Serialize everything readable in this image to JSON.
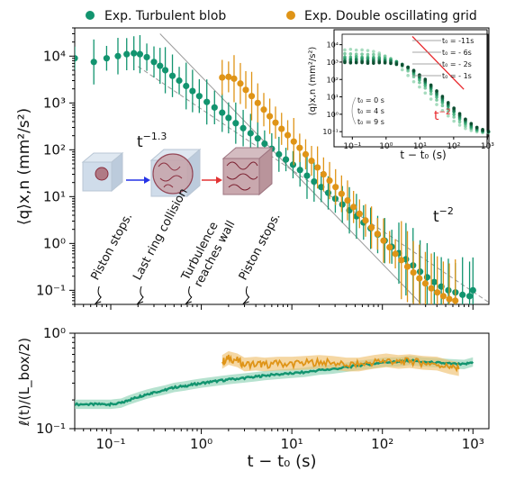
{
  "colors": {
    "turbulent": "#12946f",
    "oscillating": "#df9417",
    "turbulent_band": "#8fd3b6",
    "oscillating_band": "#f0c271",
    "red": "#e8262b",
    "arrow_blue": "#2533e6",
    "arrow_red": "#e23232",
    "ref_line": "#9a9a9a"
  },
  "legend": [
    {
      "label": "Exp. Turbulent blob",
      "color": "#12946f"
    },
    {
      "label": "Exp. Double oscillating grid",
      "color": "#df9417"
    }
  ],
  "annotations": {
    "slope_main": "t^{-1.3}",
    "slope_main_text": "t",
    "slope_main_exp": "−1.3",
    "slope_ref_text": "t",
    "slope_ref_exp": "−2",
    "events": [
      {
        "label": "Piston stops.",
        "color": "#12946f",
        "x": 0.065
      },
      {
        "label": "Last ring collision",
        "color": "#12946f",
        "x": 0.19
      },
      {
        "label": "Turbulence reaches wall",
        "line1": "Turbulence",
        "line2": "reaches wall",
        "color": "#12946f",
        "x": 0.65
      },
      {
        "label": "Piston stops.",
        "color": "#df9417",
        "x": 2.8
      }
    ],
    "inset_red_text": "t",
    "inset_red_exp": "−2",
    "inset_t0_labels": [
      "t₀ = -11s",
      "t₀ = - 6s",
      "t₀ = - 2s",
      "t₀ = - 1s"
    ],
    "inset_t0_labels_left": [
      "t₀ =  0 s",
      "t₀ =  4 s",
      "t₀ =  9 s"
    ]
  },
  "chart_data": [
    {
      "type": "scatter",
      "xlabel": "t − t₀ (s)",
      "ylabel": "⟨q⟩x,n (mm²/s²)",
      "xscale": "log",
      "yscale": "log",
      "xlim": [
        0.04,
        1500
      ],
      "ylim": [
        0.05,
        40000
      ],
      "xticks": [
        "10⁻¹",
        "10⁰",
        "10¹",
        "10²",
        "10³"
      ],
      "yticks": [
        "10⁻¹",
        "10⁰",
        "10¹",
        "10²",
        "10³",
        "10⁴"
      ],
      "series": [
        {
          "name": "Exp. Turbulent blob",
          "color": "#12946f",
          "x": [
            0.04,
            0.065,
            0.09,
            0.12,
            0.15,
            0.18,
            0.21,
            0.25,
            0.3,
            0.35,
            0.4,
            0.48,
            0.57,
            0.68,
            0.8,
            0.95,
            1.15,
            1.4,
            1.7,
            2.0,
            2.4,
            2.9,
            3.5,
            4.2,
            5.0,
            6.0,
            7.2,
            8.6,
            10.3,
            12.3,
            14.7,
            17.6,
            21.1,
            25.2,
            30.2,
            36.1,
            43.2,
            51.7,
            61.9,
            74.1,
            88.7,
            106,
            127,
            152,
            182,
            218,
            261,
            312,
            374,
            447,
            535,
            641,
            767,
            918,
            1000
          ],
          "y": [
            9000,
            7500,
            9000,
            10000,
            11000,
            11500,
            11000,
            9500,
            7500,
            6200,
            5000,
            3800,
            3000,
            2300,
            1800,
            1400,
            1050,
            800,
            620,
            480,
            370,
            290,
            225,
            175,
            135,
            105,
            80,
            62,
            48,
            37,
            28,
            21,
            16,
            12,
            9,
            6.8,
            5.1,
            3.8,
            2.8,
            2.1,
            1.55,
            1.15,
            0.85,
            0.62,
            0.46,
            0.34,
            0.25,
            0.19,
            0.15,
            0.12,
            0.1,
            0.09,
            0.08,
            0.075,
            0.1
          ]
        },
        {
          "name": "Exp. Double oscillating grid",
          "color": "#df9417",
          "x": [
            1.7,
            2.0,
            2.3,
            2.7,
            3.1,
            3.6,
            4.2,
            4.9,
            5.7,
            6.6,
            7.7,
            9.0,
            10.5,
            12.2,
            14.2,
            16.5,
            19.2,
            22.4,
            26.1,
            30.4,
            35.4,
            41.2,
            48.0,
            55.9,
            65.1,
            75.8,
            88.3,
            103,
            120,
            139,
            162,
            189,
            220,
            256,
            298,
            347,
            404,
            471,
            548,
            639
          ],
          "y": [
            3500,
            3600,
            3300,
            2600,
            1900,
            1400,
            1000,
            720,
            520,
            380,
            280,
            205,
            150,
            110,
            80,
            58,
            42,
            30,
            22,
            16,
            11.5,
            8.3,
            6.0,
            4.3,
            3.1,
            2.2,
            1.6,
            1.15,
            0.83,
            0.6,
            0.44,
            0.32,
            0.24,
            0.18,
            0.14,
            0.11,
            0.09,
            0.075,
            0.065,
            0.06
          ]
        }
      ]
    },
    {
      "type": "line",
      "xlabel": "t − t₀ (s)",
      "ylabel": "ℓ(t)/(L_box/2)",
      "xscale": "log",
      "yscale": "log",
      "xlim": [
        0.04,
        1500
      ],
      "ylim": [
        0.1,
        1.0
      ],
      "xticks": [
        "10⁻¹",
        "10⁰",
        "10¹",
        "10²",
        "10³"
      ],
      "yticks": [
        "10⁻¹",
        "10⁰"
      ],
      "series": [
        {
          "name": "Exp. Turbulent blob",
          "color": "#12946f",
          "x": [
            0.04,
            0.06,
            0.08,
            0.1,
            0.13,
            0.16,
            0.2,
            0.25,
            0.3,
            0.4,
            0.5,
            0.65,
            0.8,
            1.0,
            1.3,
            1.7,
            2.2,
            3,
            4,
            5,
            7,
            10,
            14,
            20,
            28,
            40,
            55,
            80,
            110,
            150,
            200,
            280,
            400,
            550,
            800,
            1000
          ],
          "y": [
            0.18,
            0.18,
            0.18,
            0.18,
            0.185,
            0.2,
            0.215,
            0.23,
            0.24,
            0.255,
            0.27,
            0.28,
            0.29,
            0.3,
            0.31,
            0.32,
            0.33,
            0.34,
            0.35,
            0.36,
            0.37,
            0.38,
            0.39,
            0.41,
            0.42,
            0.44,
            0.46,
            0.48,
            0.5,
            0.5,
            0.52,
            0.5,
            0.49,
            0.48,
            0.47,
            0.5
          ]
        },
        {
          "name": "Exp. Double oscillating grid",
          "color": "#df9417",
          "x": [
            1.7,
            2.0,
            2.5,
            3,
            4,
            5,
            7,
            10,
            14,
            20,
            28,
            40,
            55,
            80,
            110,
            150,
            200,
            280,
            400,
            550,
            700
          ],
          "y": [
            0.5,
            0.55,
            0.52,
            0.47,
            0.48,
            0.47,
            0.48,
            0.48,
            0.49,
            0.5,
            0.49,
            0.47,
            0.47,
            0.5,
            0.52,
            0.5,
            0.51,
            0.49,
            0.48,
            0.44,
            0.42
          ]
        }
      ]
    },
    {
      "type": "scatter",
      "xlabel": "t − t₀ (s)",
      "ylabel": "⟨q⟩x,n (mm²/s²)",
      "xscale": "log",
      "yscale": "log",
      "xlim": [
        0.05,
        1500
      ],
      "ylim": [
        0.05,
        40000
      ],
      "xticks": [
        "10⁻¹",
        "10⁰",
        "10¹",
        "10²",
        "10³"
      ],
      "yticks": [
        "10⁻¹",
        "10⁰",
        "10¹",
        "10²",
        "10³",
        "10⁴"
      ]
    }
  ]
}
